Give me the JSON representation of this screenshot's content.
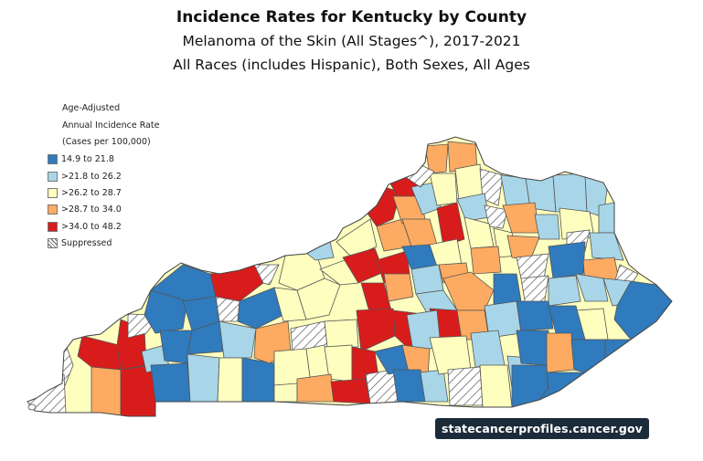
{
  "header": {
    "title": "Incidence Rates for Kentucky by County",
    "subtitle_1": "Melanoma of the Skin (All Stages^), 2017-2021",
    "subtitle_2": "All Races (includes Hispanic), Both Sexes, All Ages"
  },
  "legend": {
    "title_1": "Age-Adjusted",
    "title_2": "Annual Incidence Rate",
    "title_3": "(Cases per 100,000)",
    "items": [
      {
        "label": "14.9 to 21.8",
        "color": "#2f7bbd"
      },
      {
        "label": ">21.8 to 26.2",
        "color": "#a8d6e8"
      },
      {
        "label": ">26.2 to 28.7",
        "color": "#fefebf"
      },
      {
        "label": ">28.7 to 34.0",
        "color": "#fdab62"
      },
      {
        "label": ">34.0 to 48.2",
        "color": "#d81c1c"
      },
      {
        "label": "Suppressed",
        "color": "hatch"
      }
    ]
  },
  "footer": {
    "source_badge": "statecancerprofiles.cancer.gov"
  }
}
